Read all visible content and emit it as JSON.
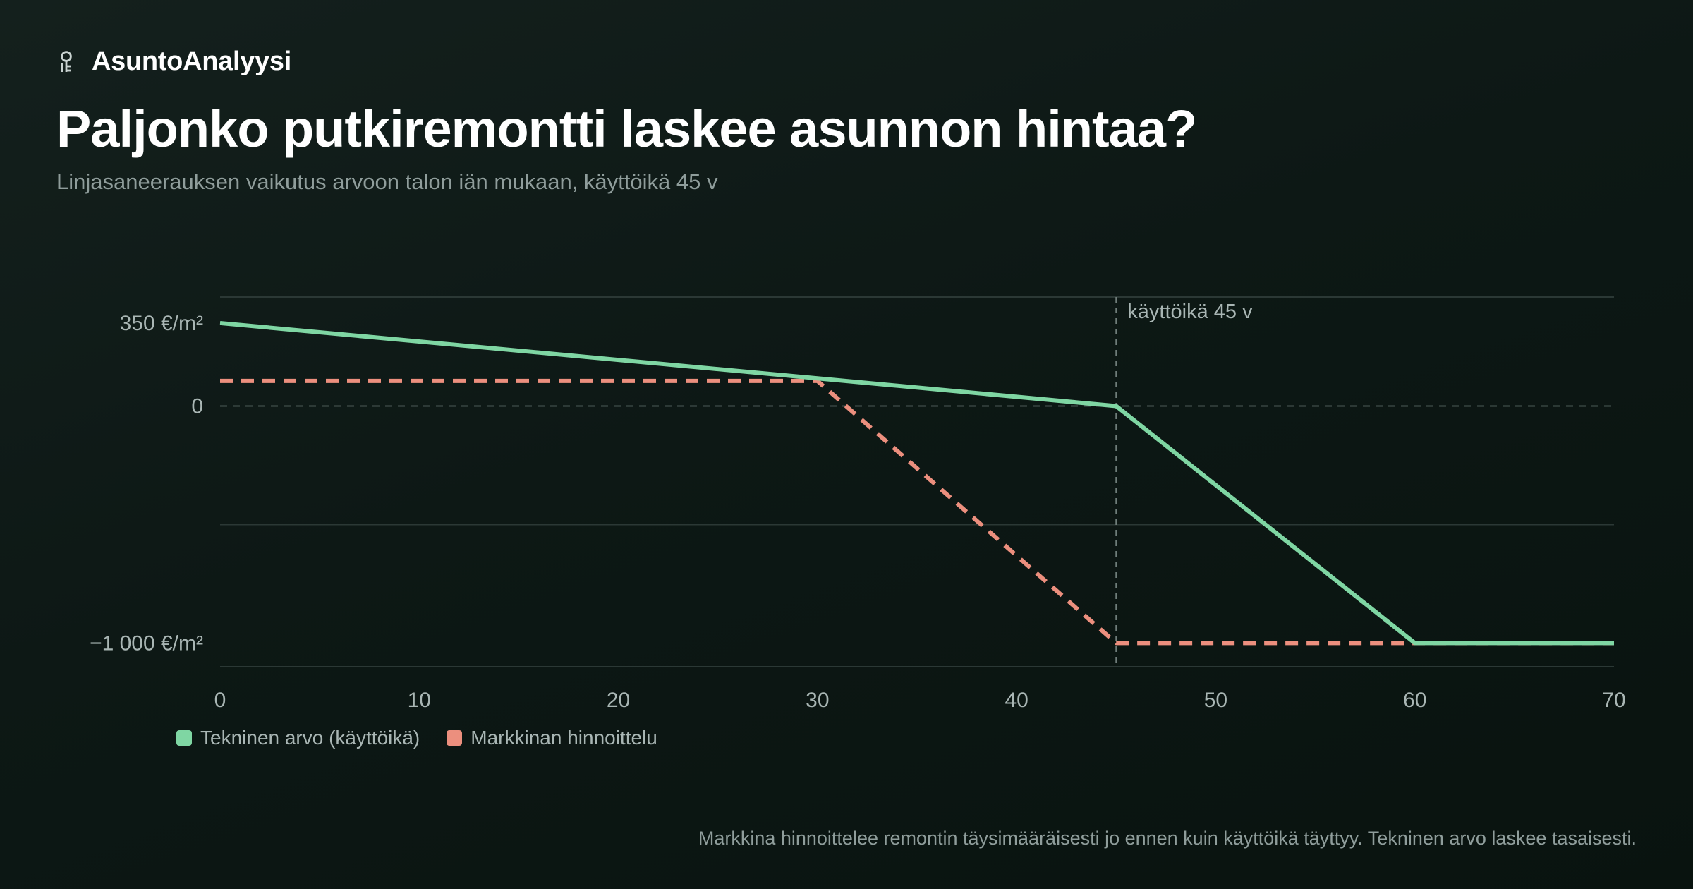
{
  "brand": {
    "name": "AsuntoAnalyysi",
    "icon": "house-key-icon"
  },
  "title": "Paljonko putkiremontti laskee asunnon hintaa?",
  "subtitle": "Linjasaneerauksen vaikutus arvoon talon iän mukaan, käyttöikä 45 v",
  "footnote": "Markkina hinnoittelee remontin täysimääräisesti jo ennen kuin käyttöikä täyttyy. Tekninen arvo laskee tasaisesti.",
  "colors": {
    "technical": "#7fd6a3",
    "market": "#ec8f7e",
    "grid": "#2b3835",
    "tick_text": "#a9b6b4",
    "annotation_text": "#a9b6b4"
  },
  "chart_data": {
    "type": "line",
    "title": "Paljonko putkiremontti laskee asunnon hintaa?",
    "subtitle": "Linjasaneerauksen vaikutus arvoon talon iän mukaan, käyttöikä 45 v",
    "xlabel": "",
    "ylabel": "",
    "xlim": [
      0,
      70
    ],
    "ylim": [
      -1100,
      460
    ],
    "x_ticks": [
      0,
      10,
      20,
      30,
      40,
      50,
      60,
      70
    ],
    "y_ticks": [
      {
        "value": 350,
        "label": "350 €/m²"
      },
      {
        "value": 0,
        "label": "0"
      },
      {
        "value": -1000,
        "label": "−1 000 €/m²"
      }
    ],
    "grid": true,
    "legend_position": "bottom-left",
    "series": [
      {
        "name": "Tekninen arvo (käyttöikä)",
        "style": "solid",
        "color": "#7fd6a3",
        "points": [
          [
            0,
            350
          ],
          [
            30,
            117
          ],
          [
            45,
            0
          ],
          [
            60,
            -1000
          ],
          [
            70,
            -1000
          ]
        ]
      },
      {
        "name": "Markkinan hinnoittelu",
        "style": "dashed",
        "color": "#ec8f7e",
        "points": [
          [
            0,
            106
          ],
          [
            30,
            106
          ],
          [
            45,
            -1000
          ],
          [
            70,
            -1000
          ]
        ]
      }
    ],
    "annotations": [
      {
        "x": 45,
        "label": "käyttöikä 45 v"
      }
    ]
  }
}
